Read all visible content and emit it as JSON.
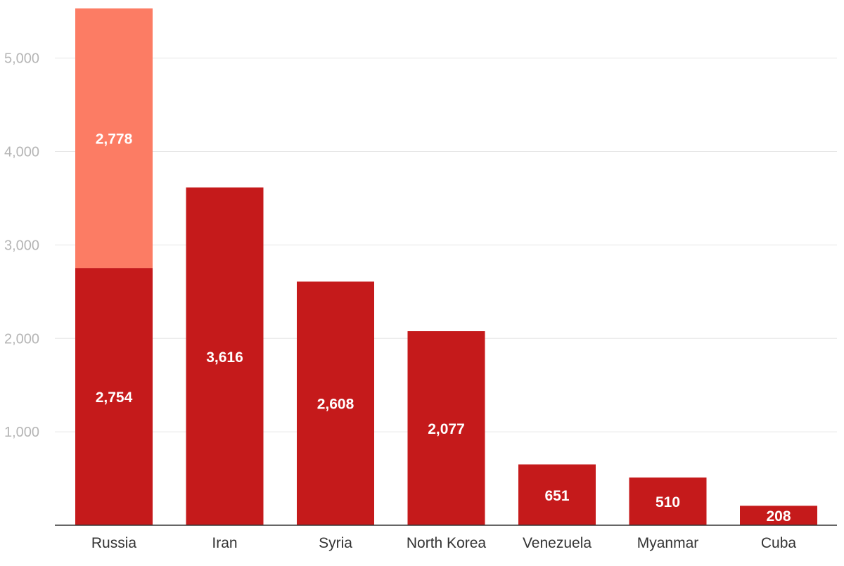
{
  "chart_data": {
    "type": "bar",
    "stacked": true,
    "title": "",
    "xlabel": "",
    "ylabel": "",
    "ylim": [
      0,
      5532
    ],
    "yticks": [
      1000,
      2000,
      3000,
      4000,
      5000
    ],
    "ytick_labels": [
      "1,000",
      "2,000",
      "3,000",
      "4,000",
      "5,000"
    ],
    "grid": true,
    "legend": "none",
    "categories": [
      "Russia",
      "Iran",
      "Syria",
      "North Korea",
      "Venezuela",
      "Myanmar",
      "Cuba"
    ],
    "series": [
      {
        "values": [
          2754,
          3616,
          2608,
          2077,
          651,
          510,
          208
        ],
        "labels": [
          "2,754",
          "3,616",
          "2,608",
          "2,077",
          "651",
          "510",
          "208"
        ],
        "color": "#c51a1b"
      },
      {
        "values": [
          2778,
          0,
          0,
          0,
          0,
          0,
          0
        ],
        "labels": [
          "2,778",
          "",
          "",
          "",
          "",
          "",
          ""
        ],
        "color": "#fc7c64"
      }
    ]
  }
}
